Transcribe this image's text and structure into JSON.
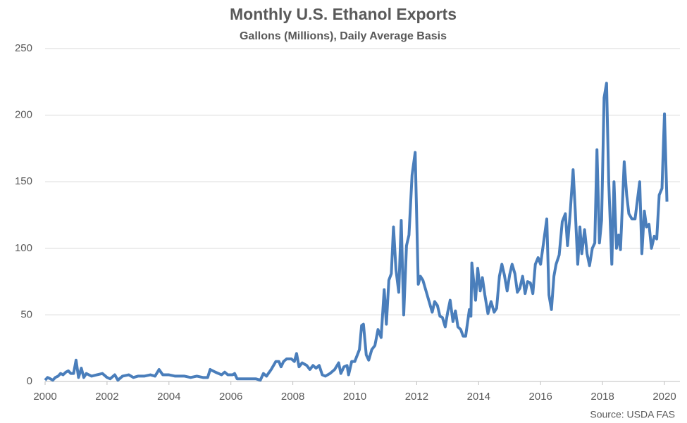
{
  "chart_data": {
    "type": "line",
    "title": "Monthly U.S. Ethanol Exports",
    "subtitle": "Gallons (Millions), Daily Average Basis",
    "source": "Source: USDA FAS",
    "x": [
      2000.0,
      2000.08,
      2000.17,
      2000.25,
      2000.33,
      2000.42,
      2000.5,
      2000.58,
      2000.67,
      2000.75,
      2000.83,
      2000.92,
      2001.0,
      2001.08,
      2001.17,
      2001.25,
      2001.33,
      2001.5,
      2001.67,
      2001.85,
      2002.0,
      2002.1,
      2002.25,
      2002.35,
      2002.5,
      2002.7,
      2002.85,
      2003.0,
      2003.2,
      2003.4,
      2003.55,
      2003.68,
      2003.8,
      2004.0,
      2004.2,
      2004.5,
      2004.7,
      2004.9,
      2005.1,
      2005.25,
      2005.33,
      2005.5,
      2005.7,
      2005.8,
      2005.9,
      2006.05,
      2006.12,
      2006.2,
      2006.4,
      2006.6,
      2006.8,
      2006.95,
      2007.05,
      2007.15,
      2007.3,
      2007.45,
      2007.55,
      2007.62,
      2007.7,
      2007.8,
      2007.95,
      2008.05,
      2008.12,
      2008.2,
      2008.3,
      2008.45,
      2008.55,
      2008.65,
      2008.75,
      2008.85,
      2008.95,
      2009.05,
      2009.2,
      2009.35,
      2009.48,
      2009.55,
      2009.65,
      2009.75,
      2009.8,
      2009.9,
      2010.0,
      2010.15,
      2010.22,
      2010.28,
      2010.37,
      2010.45,
      2010.55,
      2010.65,
      2010.75,
      2010.85,
      2010.95,
      2011.02,
      2011.1,
      2011.18,
      2011.25,
      2011.33,
      2011.42,
      2011.5,
      2011.58,
      2011.67,
      2011.75,
      2011.85,
      2011.95,
      2012.05,
      2012.12,
      2012.2,
      2012.3,
      2012.4,
      2012.5,
      2012.58,
      2012.67,
      2012.75,
      2012.83,
      2012.92,
      2013.0,
      2013.08,
      2013.17,
      2013.25,
      2013.33,
      2013.42,
      2013.5,
      2013.58,
      2013.7,
      2013.75,
      2013.78,
      2013.9,
      2013.97,
      2014.05,
      2014.12,
      2014.2,
      2014.3,
      2014.4,
      2014.5,
      2014.58,
      2014.67,
      2014.75,
      2014.83,
      2014.92,
      2015.0,
      2015.08,
      2015.17,
      2015.25,
      2015.33,
      2015.42,
      2015.5,
      2015.58,
      2015.67,
      2015.75,
      2015.83,
      2015.92,
      2016.0,
      2016.1,
      2016.2,
      2016.27,
      2016.35,
      2016.43,
      2016.5,
      2016.6,
      2016.7,
      2016.8,
      2016.87,
      2016.95,
      2017.05,
      2017.12,
      2017.2,
      2017.27,
      2017.33,
      2017.42,
      2017.5,
      2017.58,
      2017.67,
      2017.75,
      2017.82,
      2017.9,
      2017.97,
      2018.05,
      2018.13,
      2018.2,
      2018.3,
      2018.37,
      2018.45,
      2018.52,
      2018.58,
      2018.7,
      2018.78,
      2018.85,
      2018.95,
      2019.05,
      2019.12,
      2019.2,
      2019.27,
      2019.35,
      2019.42,
      2019.5,
      2019.58,
      2019.67,
      2019.75,
      2019.83,
      2019.92,
      2020.0,
      2020.08
    ],
    "series": [
      {
        "color": "#4a7ebb",
        "values": [
          1,
          3,
          2,
          1,
          3,
          4,
          6,
          5,
          7,
          8,
          6,
          6,
          16,
          3,
          10,
          3,
          6,
          4,
          5,
          6,
          3,
          2,
          5,
          1,
          4,
          5,
          3,
          4,
          4,
          5,
          4,
          9,
          5,
          5,
          4,
          4,
          3,
          4,
          3,
          3,
          9,
          7,
          5,
          7,
          5,
          5,
          6,
          2,
          2,
          2,
          2,
          1,
          6,
          4,
          9,
          15,
          15,
          11,
          15,
          17,
          17,
          15,
          21,
          11,
          14,
          12,
          9,
          12,
          10,
          12,
          5,
          4,
          6,
          9,
          14,
          6,
          11,
          12,
          5,
          15,
          15,
          24,
          42,
          43,
          20,
          16,
          24,
          27,
          39,
          33,
          69,
          43,
          76,
          81,
          116,
          84,
          67,
          121,
          50,
          102,
          110,
          155,
          172,
          73,
          79,
          76,
          68,
          60,
          52,
          60,
          57,
          49,
          48,
          41,
          52,
          61,
          45,
          53,
          41,
          39,
          34,
          34,
          54,
          49,
          89,
          61,
          85,
          68,
          78,
          65,
          51,
          60,
          52,
          55,
          79,
          88,
          80,
          68,
          80,
          88,
          81,
          67,
          70,
          79,
          66,
          75,
          74,
          66,
          88,
          93,
          88,
          105,
          122,
          65,
          54,
          79,
          88,
          95,
          120,
          126,
          102,
          125,
          159,
          128,
          88,
          116,
          96,
          114,
          96,
          87,
          100,
          104,
          174,
          104,
          121,
          213,
          224,
          150,
          88,
          150,
          100,
          110,
          99,
          165,
          140,
          126,
          122,
          122,
          135,
          150,
          96,
          128,
          116,
          118,
          100,
          109,
          107,
          140,
          145,
          201,
          135
        ]
      }
    ],
    "xlim": [
      2000,
      2020.5
    ],
    "xticks": [
      2000,
      2002,
      2004,
      2006,
      2008,
      2010,
      2012,
      2014,
      2016,
      2018,
      2020
    ],
    "ylim": [
      0,
      250
    ],
    "yticks": [
      0,
      50,
      100,
      150,
      200,
      250
    ],
    "grid": true
  }
}
